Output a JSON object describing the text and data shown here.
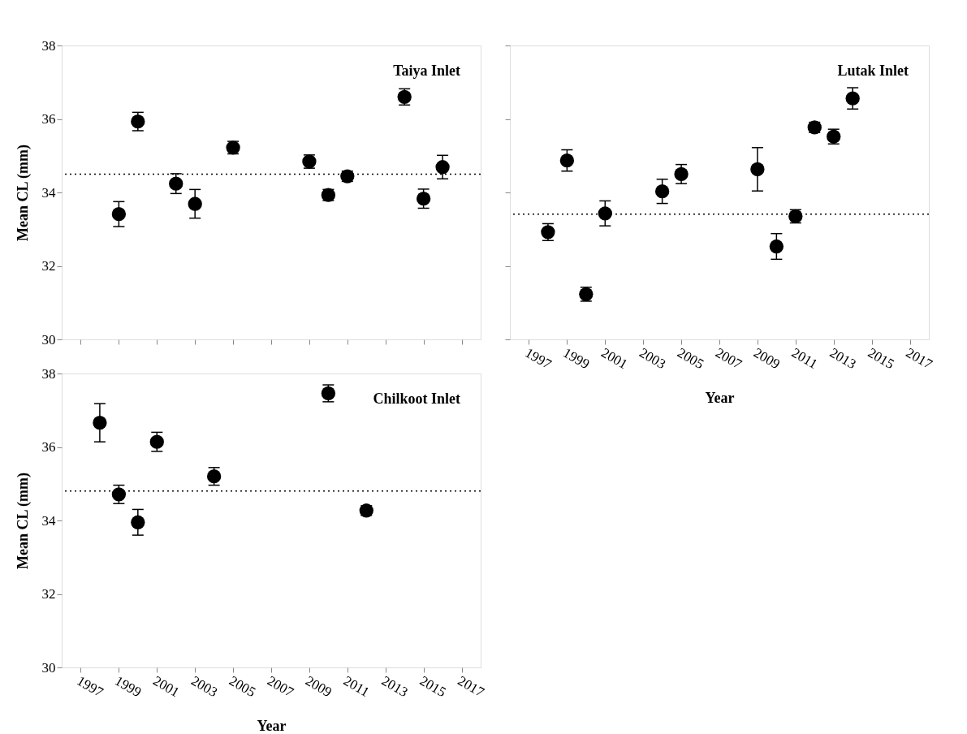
{
  "chart_data": [
    {
      "type": "scatter",
      "title": "Taiya Inlet",
      "ylabel": "Mean CL (mm)",
      "x": [
        1999,
        2000,
        2002,
        2003,
        2005,
        2009,
        2010,
        2011,
        2014,
        2015,
        2016
      ],
      "values": [
        33.41,
        35.93,
        34.24,
        33.69,
        35.22,
        34.84,
        33.93,
        34.44,
        36.6,
        33.83,
        34.69
      ],
      "errors": [
        0.34,
        0.25,
        0.27,
        0.39,
        0.17,
        0.18,
        0.15,
        0.14,
        0.22,
        0.26,
        0.32
      ],
      "color": "#000000",
      "marker": "circle",
      "xlim": [
        1996,
        2018
      ],
      "xticks": [
        1997,
        1999,
        2001,
        2003,
        2005,
        2007,
        2009,
        2011,
        2013,
        2015,
        2017
      ],
      "ylim": [
        30,
        38
      ],
      "yticks": [
        30,
        32,
        34,
        36,
        38
      ],
      "tick_labels": "y",
      "grid": false,
      "ref_lines": [
        {
          "axis": "y",
          "value": 34.5,
          "label": null,
          "color": "#000000",
          "line_style": "dotted"
        }
      ]
    },
    {
      "type": "scatter",
      "title": "Lutak Inlet",
      "xlabel": "Year",
      "x": [
        1998,
        1999,
        2000,
        2001,
        2004,
        2005,
        2009,
        2010,
        2011,
        2012,
        2013,
        2014
      ],
      "values": [
        32.92,
        34.87,
        31.23,
        33.43,
        34.03,
        34.5,
        34.63,
        32.53,
        33.35,
        35.77,
        35.52,
        36.56
      ],
      "errors": [
        0.23,
        0.29,
        0.19,
        0.34,
        0.33,
        0.26,
        0.59,
        0.35,
        0.18,
        0.14,
        0.2,
        0.29
      ],
      "color": "#000000",
      "marker": "circle",
      "xlim": [
        1996,
        2018
      ],
      "xticks": [
        1997,
        1999,
        2001,
        2003,
        2005,
        2007,
        2009,
        2011,
        2013,
        2015,
        2017
      ],
      "ylim": [
        30,
        38
      ],
      "yticks": [
        30,
        32,
        34,
        36,
        38
      ],
      "tick_labels": "x",
      "grid": false,
      "ref_lines": [
        {
          "axis": "y",
          "value": 33.41,
          "label": null,
          "color": "#000000",
          "line_style": "dotted"
        }
      ]
    },
    {
      "type": "scatter",
      "title": "Chilkoot Inlet",
      "xlabel": "Year",
      "ylabel": "Mean CL (mm)",
      "x": [
        1998,
        1999,
        2000,
        2001,
        2004,
        2010,
        2012
      ],
      "values": [
        36.66,
        34.71,
        33.95,
        36.14,
        35.2,
        37.46,
        34.27
      ],
      "errors": [
        0.52,
        0.25,
        0.35,
        0.26,
        0.24,
        0.23,
        0.13
      ],
      "color": "#000000",
      "marker": "circle",
      "xlim": [
        1996,
        2018
      ],
      "xticks": [
        1997,
        1999,
        2001,
        2003,
        2005,
        2007,
        2009,
        2011,
        2013,
        2015,
        2017
      ],
      "ylim": [
        30,
        38
      ],
      "yticks": [
        30,
        32,
        34,
        36,
        38
      ],
      "grid": false,
      "ref_lines": [
        {
          "axis": "y",
          "value": 34.8,
          "label": null,
          "color": "#000000",
          "line_style": "dotted"
        }
      ]
    }
  ]
}
